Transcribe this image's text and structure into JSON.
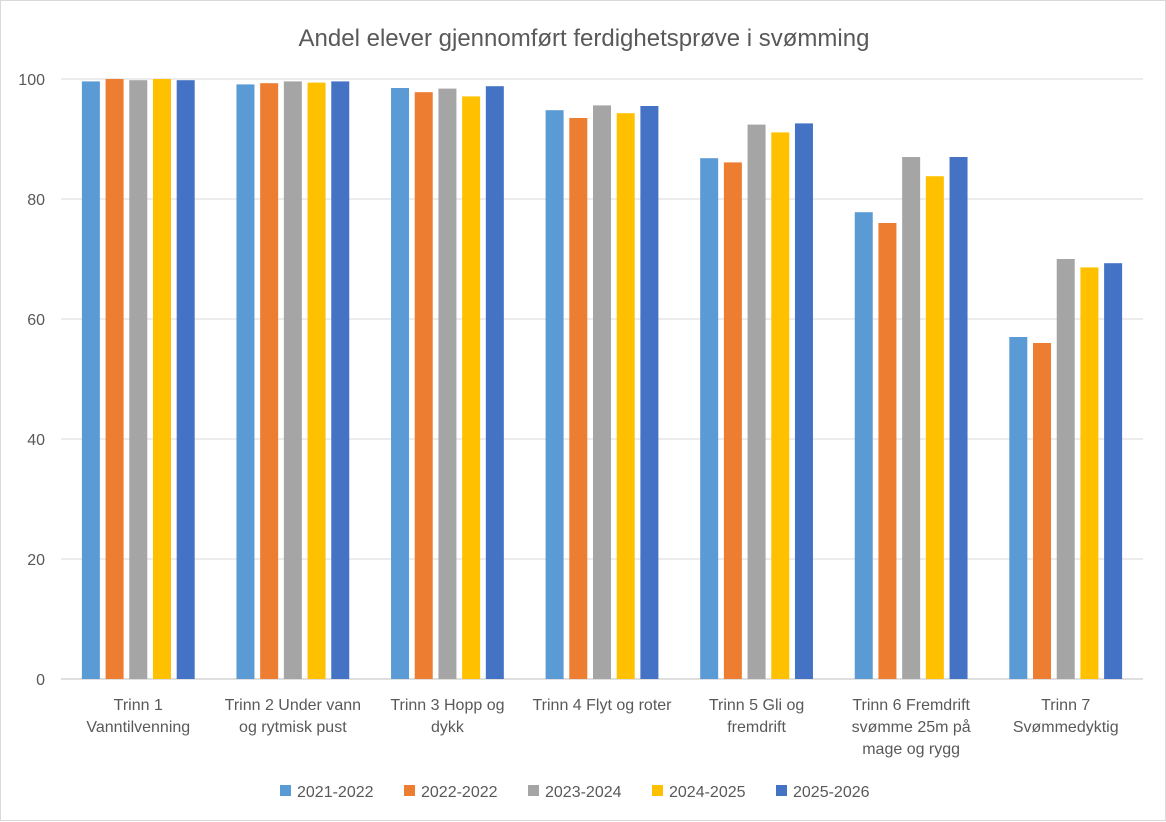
{
  "chart_data": {
    "type": "bar",
    "title": "Andel elever gjennomført ferdighetsprøve i svømming",
    "xlabel": "",
    "ylabel": "",
    "ylim": [
      0,
      100
    ],
    "yticks": [
      0,
      20,
      40,
      60,
      80,
      100
    ],
    "grid": true,
    "legend_position": "bottom",
    "categories": [
      [
        "Trinn 1",
        "Vanntilvenning"
      ],
      [
        "Trinn 2 Under vann",
        "og rytmisk pust"
      ],
      [
        "Trinn 3 Hopp og",
        "dykk"
      ],
      [
        "Trinn 4 Flyt og roter"
      ],
      [
        "Trinn 5 Gli og",
        "fremdrift"
      ],
      [
        "Trinn 6 Fremdrift",
        "svømme 25m på",
        "mage og rygg"
      ],
      [
        "Trinn 7",
        "Svømmedyktig"
      ]
    ],
    "series": [
      {
        "name": "2021-2022",
        "color": "#5b9bd5",
        "values": [
          99.6,
          99.1,
          98.5,
          94.8,
          86.8,
          77.8,
          57.0
        ]
      },
      {
        "name": "2022-2022",
        "color": "#ed7d31",
        "values": [
          100,
          99.3,
          97.8,
          93.5,
          86.1,
          76.0,
          56.0
        ]
      },
      {
        "name": "2023-2024",
        "color": "#a5a5a5",
        "values": [
          99.8,
          99.6,
          98.4,
          95.6,
          92.4,
          87.0,
          70.0
        ]
      },
      {
        "name": "2024-2025",
        "color": "#ffc000",
        "values": [
          100,
          99.4,
          97.1,
          94.3,
          91.1,
          83.8,
          68.6
        ]
      },
      {
        "name": "2025-2026",
        "color": "#4472c4",
        "values": [
          99.8,
          99.6,
          98.8,
          95.5,
          92.6,
          87.0,
          69.3
        ]
      }
    ]
  }
}
